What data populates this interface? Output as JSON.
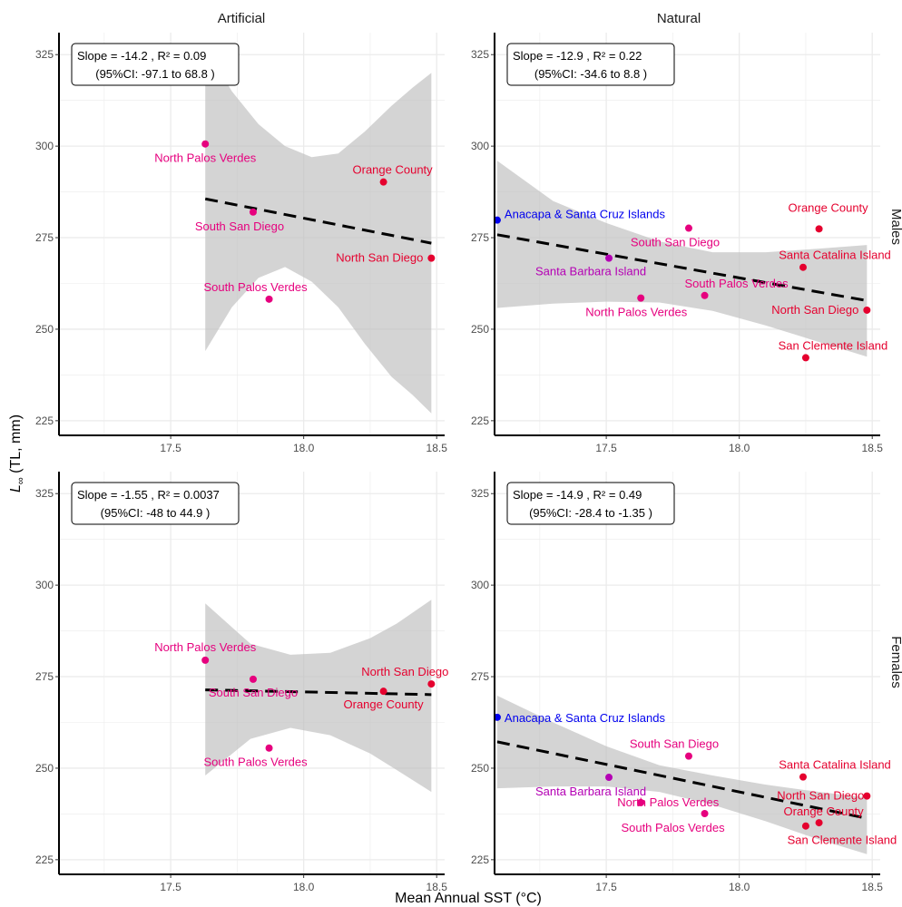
{
  "chart_data": {
    "type": "scatter",
    "xlabel": "Mean Annual SST (°C)",
    "ylabel": {
      "symbol": "L",
      "subscript": "∞",
      "rest": " (TL, mm)"
    },
    "xlim": [
      17.08,
      18.53
    ],
    "ylim": [
      221.0,
      331.0
    ],
    "x_ticks": [
      "17.5",
      "18.0",
      "18.5"
    ],
    "y_ticks": [
      "225",
      "250",
      "275",
      "300",
      "325"
    ],
    "grid": true,
    "columns": [
      "Artificial",
      "Natural"
    ],
    "rows": [
      "Males",
      "Females"
    ],
    "panels": [
      {
        "col": "Artificial",
        "row": "Males",
        "annotation": {
          "line1": "Slope = -14.2 , R² =  0.09",
          "line2": "(95%CI: -97.1  to  68.8 )"
        },
        "fit": {
          "x": [
            17.63,
            18.48
          ],
          "y": [
            285.6,
            273.5
          ]
        },
        "ci": {
          "x": [
            17.63,
            17.73,
            17.83,
            17.93,
            18.03,
            18.13,
            18.23,
            18.33,
            18.41,
            18.48
          ],
          "lower": [
            244.0,
            256.0,
            264.0,
            267.0,
            263.0,
            256.0,
            246.0,
            237.0,
            232.0,
            227.0
          ],
          "upper": [
            327.0,
            315.0,
            306.0,
            300.0,
            297.0,
            298.0,
            304.0,
            311.0,
            316.0,
            320.0
          ]
        },
        "points": [
          {
            "label": "North Palos Verdes",
            "x": 17.63,
            "y": 300.6,
            "color": "#e6007e",
            "anchor": "middle",
            "dx": 0,
            "dy": 20
          },
          {
            "label": "South San Diego",
            "x": 17.81,
            "y": 282.0,
            "color": "#e6007e",
            "anchor": "middle",
            "dx": -15,
            "dy": 20
          },
          {
            "label": "South Palos Verdes",
            "x": 17.87,
            "y": 258.2,
            "color": "#e6007e",
            "anchor": "middle",
            "dx": -15,
            "dy": -9
          },
          {
            "label": "Orange County",
            "x": 18.3,
            "y": 290.2,
            "color": "#e5002e",
            "anchor": "middle",
            "dx": 10,
            "dy": -9
          },
          {
            "label": "North San Diego",
            "x": 18.48,
            "y": 269.4,
            "color": "#e5002e",
            "anchor": "end",
            "dx": -9,
            "dy": 4
          }
        ]
      },
      {
        "col": "Natural",
        "row": "Males",
        "annotation": {
          "line1": "Slope = -12.9 , R² =  0.22",
          "line2": "(95%CI: -34.6  to  8.8 )"
        },
        "fit": {
          "x": [
            17.09,
            18.48
          ],
          "y": [
            275.8,
            257.8
          ]
        },
        "ci": {
          "x": [
            17.09,
            17.3,
            17.5,
            17.7,
            17.9,
            18.1,
            18.3,
            18.48
          ],
          "lower": [
            255.8,
            257.0,
            257.5,
            257.3,
            255.0,
            251.0,
            246.5,
            242.5
          ],
          "upper": [
            296.0,
            285.0,
            279.0,
            274.0,
            271.0,
            271.0,
            272.0,
            273.0
          ]
        },
        "points": [
          {
            "label": "Anacapa & Santa Cruz Islands",
            "x": 17.09,
            "y": 279.8,
            "color": "#0000ee",
            "anchor": "start",
            "dx": 8,
            "dy": -2
          },
          {
            "label": "Santa Barbara Island",
            "x": 17.51,
            "y": 269.4,
            "color": "#b400b4",
            "anchor": "middle",
            "dx": -20,
            "dy": 19
          },
          {
            "label": "North Palos Verdes",
            "x": 17.63,
            "y": 258.5,
            "color": "#e6007e",
            "anchor": "middle",
            "dx": -5,
            "dy": 20
          },
          {
            "label": "South San Diego",
            "x": 17.81,
            "y": 277.6,
            "color": "#e6007e",
            "anchor": "middle",
            "dx": -15,
            "dy": 20
          },
          {
            "label": "South Palos Verdes",
            "x": 17.87,
            "y": 259.2,
            "color": "#e6007e",
            "anchor": "middle",
            "dx": 35,
            "dy": -9
          },
          {
            "label": "Orange County",
            "x": 18.3,
            "y": 277.4,
            "color": "#e5002e",
            "anchor": "middle",
            "dx": 10,
            "dy": -19
          },
          {
            "label": "Santa Catalina Island",
            "x": 18.24,
            "y": 266.9,
            "color": "#e5002e",
            "anchor": "middle",
            "dx": 35,
            "dy": -9
          },
          {
            "label": "North San Diego",
            "x": 18.48,
            "y": 255.2,
            "color": "#e5002e",
            "anchor": "end",
            "dx": -9,
            "dy": 4
          },
          {
            "label": "San Clemente Island",
            "x": 18.25,
            "y": 242.2,
            "color": "#e5002e",
            "anchor": "middle",
            "dx": 30,
            "dy": -9
          }
        ]
      },
      {
        "col": "Artificial",
        "row": "Females",
        "annotation": {
          "line1": "Slope = -1.55 , R² =  0.0037",
          "line2": "(95%CI: -48  to  44.9 )"
        },
        "fit": {
          "x": [
            17.63,
            18.48
          ],
          "y": [
            271.4,
            270.1
          ]
        },
        "ci": {
          "x": [
            17.63,
            17.8,
            17.95,
            18.1,
            18.25,
            18.35,
            18.48
          ],
          "lower": [
            248.0,
            258.0,
            261.0,
            259.0,
            254.0,
            249.5,
            243.5
          ],
          "upper": [
            295.0,
            284.0,
            281.0,
            281.5,
            285.5,
            289.5,
            296.0
          ]
        },
        "points": [
          {
            "label": "North Palos Verdes",
            "x": 17.63,
            "y": 279.5,
            "color": "#e6007e",
            "anchor": "middle",
            "dx": 0,
            "dy": -10
          },
          {
            "label": "South San Diego",
            "x": 17.81,
            "y": 274.3,
            "color": "#e6007e",
            "anchor": "middle",
            "dx": 0,
            "dy": 19
          },
          {
            "label": "South Palos Verdes",
            "x": 17.87,
            "y": 255.5,
            "color": "#e6007e",
            "anchor": "middle",
            "dx": -15,
            "dy": 20
          },
          {
            "label": "Orange County",
            "x": 18.3,
            "y": 271.0,
            "color": "#e5002e",
            "anchor": "middle",
            "dx": 0,
            "dy": 19
          },
          {
            "label": "North San Diego",
            "x": 18.48,
            "y": 273.0,
            "color": "#e5002e",
            "anchor": "middle",
            "dx": -29,
            "dy": -9
          }
        ]
      },
      {
        "col": "Natural",
        "row": "Females",
        "annotation": {
          "line1": "Slope = -14.9 , R² =  0.49",
          "line2": "(95%CI: -28.4  to  -1.35 )"
        },
        "fit": {
          "x": [
            17.09,
            18.48
          ],
          "y": [
            257.2,
            236.3
          ]
        },
        "ci": {
          "x": [
            17.09,
            17.3,
            17.5,
            17.7,
            17.9,
            18.1,
            18.3,
            18.48
          ],
          "lower": [
            244.5,
            245.0,
            245.0,
            243.5,
            240.0,
            235.5,
            230.5,
            226.5
          ],
          "upper": [
            269.8,
            262.5,
            256.0,
            250.8,
            248.0,
            245.5,
            243.5,
            242.0
          ]
        },
        "points": [
          {
            "label": "Anacapa & Santa Cruz Islands",
            "x": 17.09,
            "y": 263.9,
            "color": "#0000ee",
            "anchor": "start",
            "dx": 8,
            "dy": 5
          },
          {
            "label": "Santa Barbara Island",
            "x": 17.51,
            "y": 247.5,
            "color": "#b400b4",
            "anchor": "middle",
            "dx": -20,
            "dy": 20
          },
          {
            "label": "North Palos Verdes",
            "x": 17.63,
            "y": 240.6,
            "color": "#e6007e",
            "anchor": "middle",
            "dx": 30,
            "dy": 4
          },
          {
            "label": "South San Diego",
            "x": 17.81,
            "y": 253.3,
            "color": "#e6007e",
            "anchor": "middle",
            "dx": -16,
            "dy": -9
          },
          {
            "label": "South Palos Verdes",
            "x": 17.87,
            "y": 237.6,
            "color": "#e6007e",
            "anchor": "middle",
            "dx": -35,
            "dy": 20
          },
          {
            "label": "Santa Catalina Island",
            "x": 18.24,
            "y": 247.6,
            "color": "#e5002e",
            "anchor": "middle",
            "dx": 35,
            "dy": -9
          },
          {
            "label": "North San Diego",
            "x": 18.48,
            "y": 242.4,
            "color": "#e5002e",
            "anchor": "end",
            "dx": -3,
            "dy": 4
          },
          {
            "label": "Orange County",
            "x": 18.3,
            "y": 235.1,
            "color": "#e5002e",
            "anchor": "middle",
            "dx": 5,
            "dy": -8
          },
          {
            "label": "San Clemente Island",
            "x": 18.25,
            "y": 234.2,
            "color": "#e5002e",
            "anchor": "middle",
            "dx": 40,
            "dy": 20
          }
        ]
      }
    ]
  }
}
